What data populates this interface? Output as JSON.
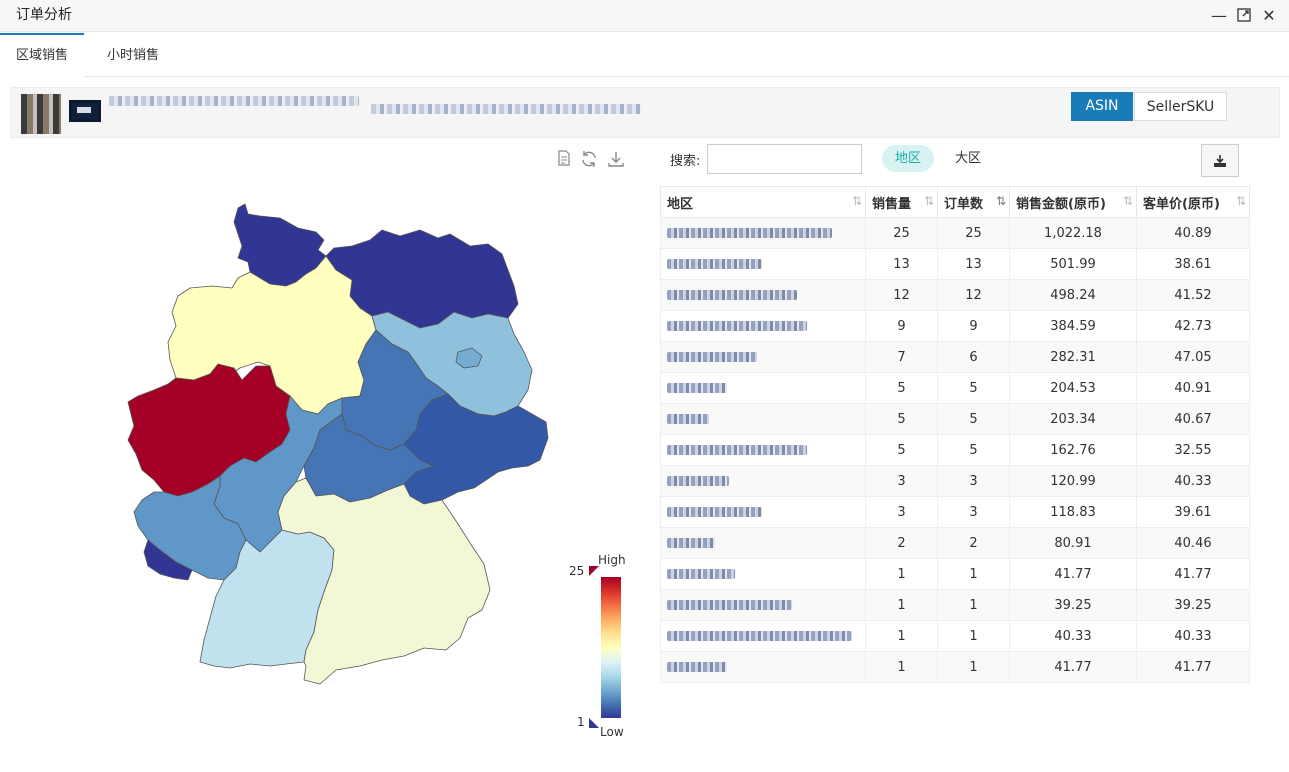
{
  "window": {
    "title": "订单分析"
  },
  "tabs": [
    {
      "label": "区域销售",
      "active": true
    },
    {
      "label": "小时销售",
      "active": false
    }
  ],
  "product": {
    "switch": {
      "asin_label": "ASIN",
      "sku_label": "SellerSKU",
      "selected": "ASIN"
    }
  },
  "map_tools": {
    "icons": [
      "file-icon",
      "refresh-icon",
      "download-icon"
    ]
  },
  "visual_map": {
    "max": "25",
    "min": "1",
    "high_label": "High",
    "low_label": "Low",
    "colors": [
      "#a50026",
      "#f46d43",
      "#fee090",
      "#ffffbf",
      "#abd9e9",
      "#4575b4",
      "#313695"
    ]
  },
  "search": {
    "label": "搜索:",
    "value": ""
  },
  "region_toggle": {
    "region_label": "地区",
    "bigregion_label": "大区",
    "selected": "地区"
  },
  "table": {
    "headers": [
      "地区",
      "销售量",
      "订单数",
      "销售金额(原币)",
      "客单价(原币)"
    ],
    "rows": [
      {
        "qty": "25",
        "orders": "25",
        "amount": "1,022.18",
        "avg": "40.89"
      },
      {
        "qty": "13",
        "orders": "13",
        "amount": "501.99",
        "avg": "38.61"
      },
      {
        "qty": "12",
        "orders": "12",
        "amount": "498.24",
        "avg": "41.52"
      },
      {
        "qty": "9",
        "orders": "9",
        "amount": "384.59",
        "avg": "42.73"
      },
      {
        "qty": "7",
        "orders": "6",
        "amount": "282.31",
        "avg": "47.05"
      },
      {
        "qty": "5",
        "orders": "5",
        "amount": "204.53",
        "avg": "40.91"
      },
      {
        "qty": "5",
        "orders": "5",
        "amount": "203.34",
        "avg": "40.67"
      },
      {
        "qty": "5",
        "orders": "5",
        "amount": "162.76",
        "avg": "32.55"
      },
      {
        "qty": "3",
        "orders": "3",
        "amount": "120.99",
        "avg": "40.33"
      },
      {
        "qty": "3",
        "orders": "3",
        "amount": "118.83",
        "avg": "39.61"
      },
      {
        "qty": "2",
        "orders": "2",
        "amount": "80.91",
        "avg": "40.46"
      },
      {
        "qty": "1",
        "orders": "1",
        "amount": "41.77",
        "avg": "41.77"
      },
      {
        "qty": "1",
        "orders": "1",
        "amount": "39.25",
        "avg": "39.25"
      },
      {
        "qty": "1",
        "orders": "1",
        "amount": "40.33",
        "avg": "40.33"
      },
      {
        "qty": "1",
        "orders": "1",
        "amount": "41.77",
        "avg": "41.77"
      }
    ]
  }
}
